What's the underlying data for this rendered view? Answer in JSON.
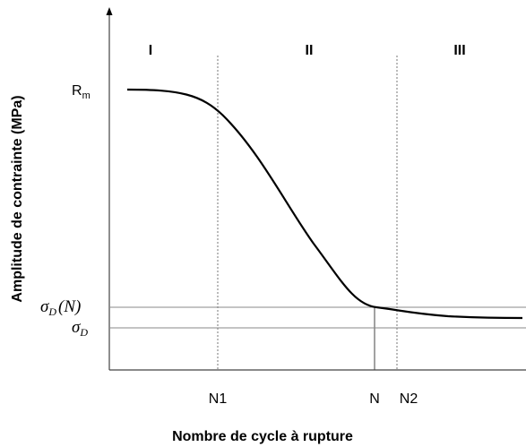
{
  "axes": {
    "y_label": "Amplitude de contrainte (MPa)",
    "x_label": "Nombre de cycle à rupture"
  },
  "regions": [
    "I",
    "II",
    "III"
  ],
  "y_ticks": [
    {
      "base": "R",
      "sub": "m"
    },
    {
      "base": "σ",
      "sub": "D",
      "suffix": "(N)"
    },
    {
      "base": "σ",
      "sub": "D"
    }
  ],
  "x_ticks": [
    "N1",
    "N",
    "N2"
  ]
}
